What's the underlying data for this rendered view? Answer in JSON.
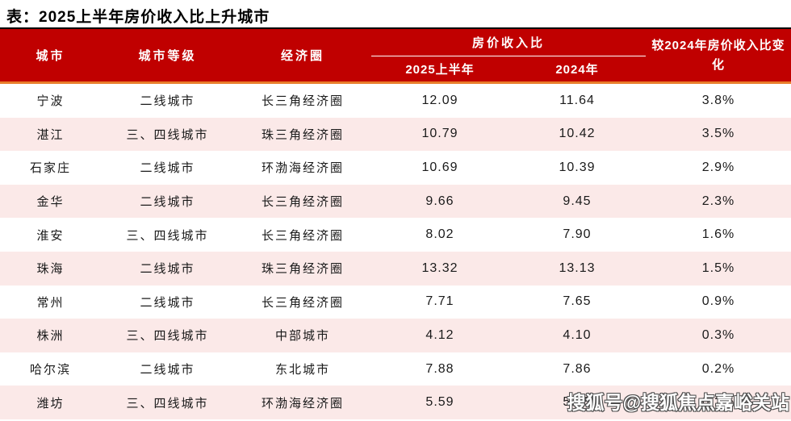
{
  "title": "表：2025上半年房价收入比上升城市",
  "watermark": "搜狐号@搜狐焦点嘉峪关站",
  "colors": {
    "header_bg": "#C00000",
    "header_text": "#FFFFFF",
    "accent_underline": "#E87D2B",
    "top_border": "#000000",
    "row_alt_bg": "#FBE9E8",
    "row_bg": "#FFFFFF",
    "body_text": "#1A1A1A"
  },
  "table": {
    "columns": {
      "city": "城市",
      "tier": "城市等级",
      "circle": "经济圈",
      "ratio_group": "房价收入比",
      "ratio_2025": "2025上半年",
      "ratio_2024": "2024年",
      "change": "较2024年房价收入比变化"
    },
    "rows": [
      {
        "city": "宁波",
        "tier": "二线城市",
        "circle": "长三角经济圈",
        "h1_2025": "12.09",
        "y2024": "11.64",
        "change": "3.8%"
      },
      {
        "city": "湛江",
        "tier": "三、四线城市",
        "circle": "珠三角经济圈",
        "h1_2025": "10.79",
        "y2024": "10.42",
        "change": "3.5%"
      },
      {
        "city": "石家庄",
        "tier": "二线城市",
        "circle": "环渤海经济圈",
        "h1_2025": "10.69",
        "y2024": "10.39",
        "change": "2.9%"
      },
      {
        "city": "金华",
        "tier": "二线城市",
        "circle": "长三角经济圈",
        "h1_2025": "9.66",
        "y2024": "9.45",
        "change": "2.3%"
      },
      {
        "city": "淮安",
        "tier": "三、四线城市",
        "circle": "长三角经济圈",
        "h1_2025": "8.02",
        "y2024": "7.90",
        "change": "1.6%"
      },
      {
        "city": "珠海",
        "tier": "二线城市",
        "circle": "珠三角经济圈",
        "h1_2025": "13.32",
        "y2024": "13.13",
        "change": "1.5%"
      },
      {
        "city": "常州",
        "tier": "二线城市",
        "circle": "长三角经济圈",
        "h1_2025": "7.71",
        "y2024": "7.65",
        "change": "0.9%"
      },
      {
        "city": "株洲",
        "tier": "三、四线城市",
        "circle": "中部城市",
        "h1_2025": "4.12",
        "y2024": "4.10",
        "change": "0.3%"
      },
      {
        "city": "哈尔滨",
        "tier": "二线城市",
        "circle": "东北城市",
        "h1_2025": "7.88",
        "y2024": "7.86",
        "change": "0.2%"
      },
      {
        "city": "潍坊",
        "tier": "三、四线城市",
        "circle": "环渤海经济圈",
        "h1_2025": "5.59",
        "y2024": "5.58",
        "change": "0.2%"
      }
    ]
  },
  "chart_data": {
    "type": "table",
    "title": "2025上半年房价收入比上升城市",
    "categories": [
      "宁波",
      "湛江",
      "石家庄",
      "金华",
      "淮安",
      "珠海",
      "常州",
      "株洲",
      "哈尔滨",
      "潍坊"
    ],
    "series": [
      {
        "name": "2025上半年房价收入比",
        "values": [
          12.09,
          10.79,
          10.69,
          9.66,
          8.02,
          13.32,
          7.71,
          4.12,
          7.88,
          5.59
        ]
      },
      {
        "name": "2024年房价收入比",
        "values": [
          11.64,
          10.42,
          10.39,
          9.45,
          7.9,
          13.13,
          7.65,
          4.1,
          7.86,
          5.58
        ]
      },
      {
        "name": "较2024年房价收入比变化",
        "values": [
          "3.8%",
          "3.5%",
          "2.9%",
          "2.3%",
          "1.6%",
          "1.5%",
          "0.9%",
          "0.3%",
          "0.2%",
          "0.2%"
        ]
      }
    ]
  }
}
